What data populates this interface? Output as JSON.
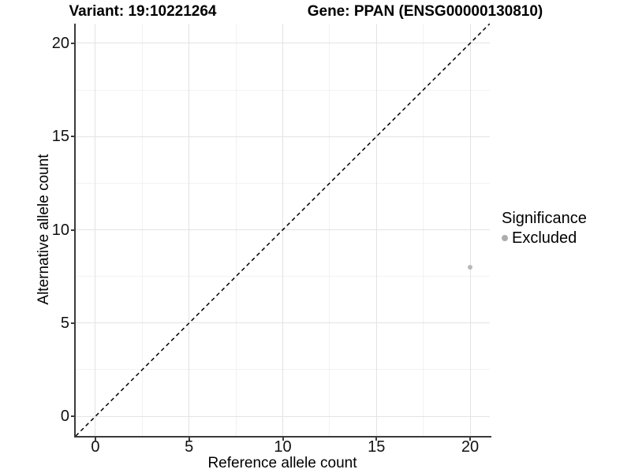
{
  "titles": {
    "variant": "Variant: 19:10221264",
    "gene": "Gene: PPAN (ENSG00000130810)"
  },
  "legend": {
    "title": "Significance",
    "items": [
      {
        "label": "Excluded",
        "color": "#adadad"
      }
    ]
  },
  "colors": {
    "background": "#ffffff",
    "axis_line": "#3b3b3b",
    "grid_major": "#e3e3e3",
    "grid_minor": "#f2f2f2",
    "reference_line": "#000000",
    "point": "#b8b8b8",
    "text": "#000000"
  },
  "chart_data": {
    "type": "scatter",
    "title": "Variant: 19:10221264 — Gene: PPAN (ENSG00000130810)",
    "xlabel": "Reference allele count",
    "ylabel": "Alternative allele count",
    "xlim": [
      -1.05,
      21.05
    ],
    "ylim": [
      -1.05,
      21.05
    ],
    "x_ticks": [
      0,
      5,
      10,
      15,
      20
    ],
    "y_ticks": [
      0,
      5,
      10,
      15,
      20
    ],
    "grid_minor_breaks": [
      2.5,
      7.5,
      12.5,
      17.5
    ],
    "grid": "on",
    "legend_position": "right",
    "series": [
      {
        "name": "Excluded",
        "color": "#b8b8b8",
        "marker_radius": 3,
        "points": [
          {
            "x": 20,
            "y": 8
          }
        ]
      }
    ],
    "reference_line": {
      "kind": "identity (y = x)",
      "style": "dashed",
      "color": "#000000",
      "from": [
        -1.05,
        -1.05
      ],
      "to": [
        21.05,
        21.05
      ]
    }
  }
}
